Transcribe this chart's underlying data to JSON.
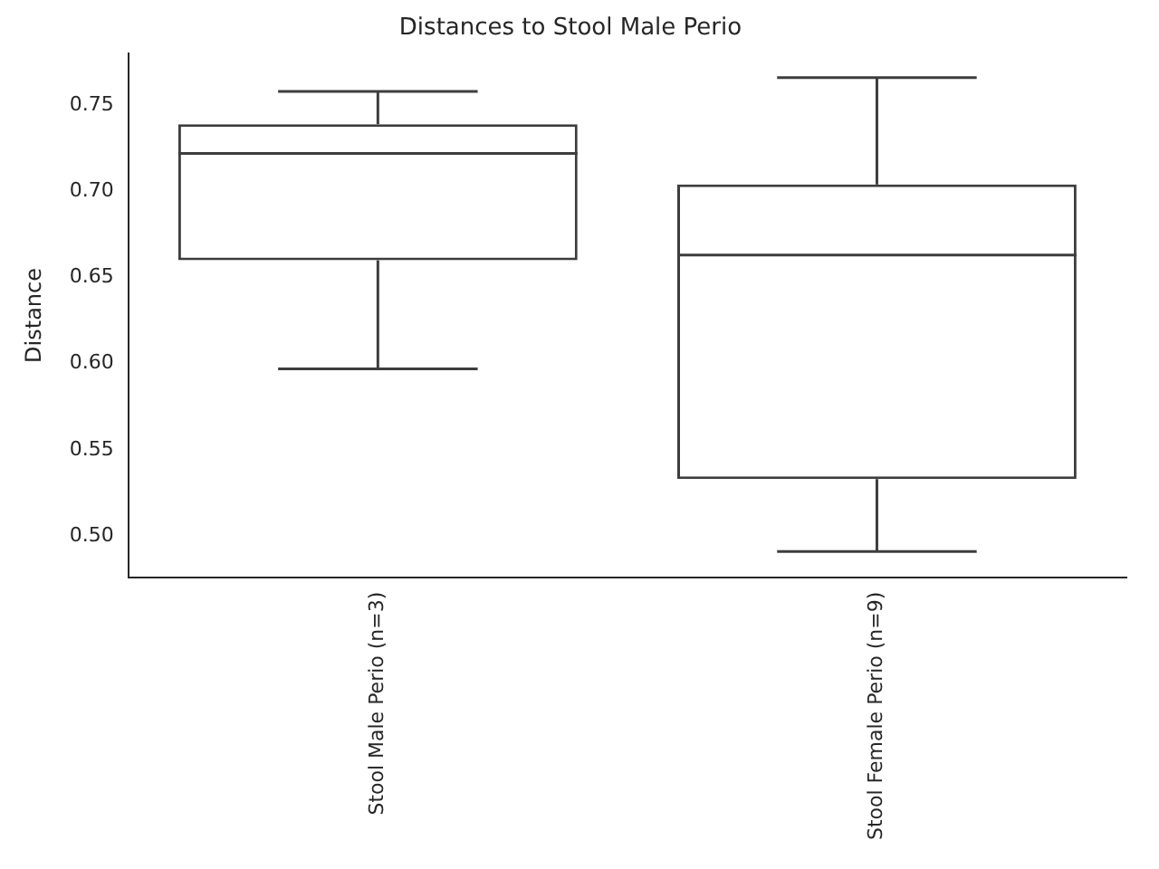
{
  "chart_data": {
    "type": "box",
    "title": "Distances to Stool Male Perio",
    "ylabel": "Distance",
    "categories": [
      "Stool Male Perio (n=3)",
      "Stool Female Perio (n=9)"
    ],
    "boxes": [
      {
        "low": 0.597,
        "q1": 0.66,
        "median": 0.722,
        "q3": 0.739,
        "high": 0.758
      },
      {
        "low": 0.491,
        "q1": 0.533,
        "median": 0.663,
        "q3": 0.704,
        "high": 0.766
      }
    ],
    "color": "#3d3d3d",
    "ylim": [
      0.476,
      0.78
    ],
    "yticks": [
      {
        "value": 0.5,
        "label": "0.50"
      },
      {
        "value": 0.55,
        "label": "0.55"
      },
      {
        "value": 0.6,
        "label": "0.60"
      },
      {
        "value": 0.65,
        "label": "0.65"
      },
      {
        "value": 0.7,
        "label": "0.70"
      },
      {
        "value": 0.75,
        "label": "0.75"
      }
    ],
    "grid": false,
    "legend": false
  }
}
